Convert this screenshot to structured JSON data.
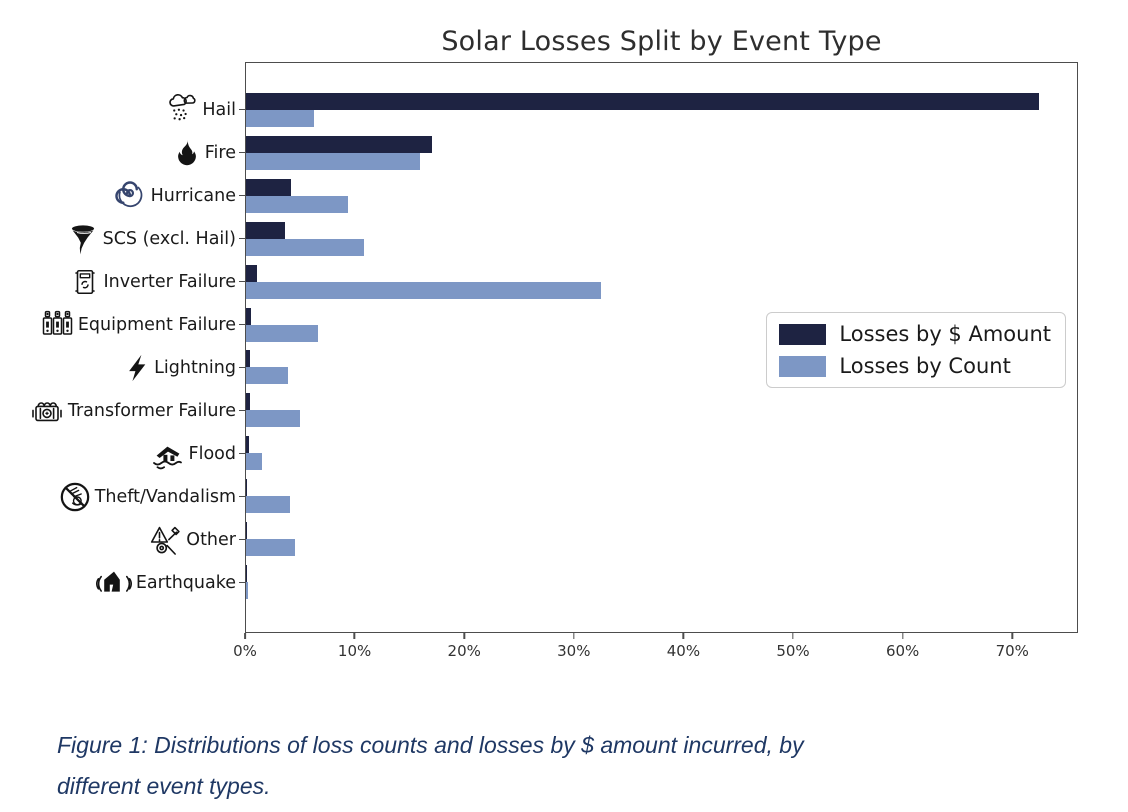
{
  "figure": {
    "title": "Solar Losses Split by Event Type",
    "caption_line1": "Figure 1: Distributions of loss counts and losses by $ amount incurred, by",
    "caption_line2": "different event types."
  },
  "legend": {
    "items": [
      {
        "label": "Losses by $ Amount",
        "color": "#1e2342"
      },
      {
        "label": "Losses by Count",
        "color": "#7d97c5"
      }
    ],
    "position": "center right"
  },
  "chart_data": {
    "type": "bar",
    "orientation": "horizontal",
    "title": "Solar Losses Split by Event Type",
    "categories": [
      "Hail",
      "Fire",
      "Hurricane",
      "SCS (excl. Hail)",
      "Inverter Failure",
      "Equipment Failure",
      "Lightning",
      "Transformer Failure",
      "Flood",
      "Theft/Vandalism",
      "Other",
      "Earthquake"
    ],
    "icons": [
      "hail-icon",
      "fire-icon",
      "hurricane-icon",
      "tornado-icon",
      "inverter-icon",
      "equipment-icon",
      "lightning-icon",
      "transformer-icon",
      "flood-icon",
      "theft-icon",
      "other-icon",
      "earthquake-icon"
    ],
    "series": [
      {
        "name": "Losses by $ Amount",
        "color": "#1e2342",
        "values": [
          72.5,
          17.0,
          4.1,
          3.6,
          1.0,
          0.5,
          0.4,
          0.35,
          0.3,
          0.12,
          0.12,
          0.05
        ]
      },
      {
        "name": "Losses by Count",
        "color": "#7d97c5",
        "values": [
          6.2,
          15.9,
          9.3,
          10.8,
          32.5,
          6.6,
          3.8,
          4.9,
          1.5,
          4.0,
          4.5,
          0.2
        ]
      }
    ],
    "unit": "%",
    "xlim": [
      0,
      76
    ],
    "x_tick_values": [
      0,
      10,
      20,
      30,
      40,
      50,
      60,
      70
    ],
    "x_tick_labels": [
      "0%",
      "10%",
      "20%",
      "30%",
      "40%",
      "50%",
      "60%",
      "70%"
    ],
    "grid": false,
    "xlabel": "",
    "ylabel": ""
  }
}
